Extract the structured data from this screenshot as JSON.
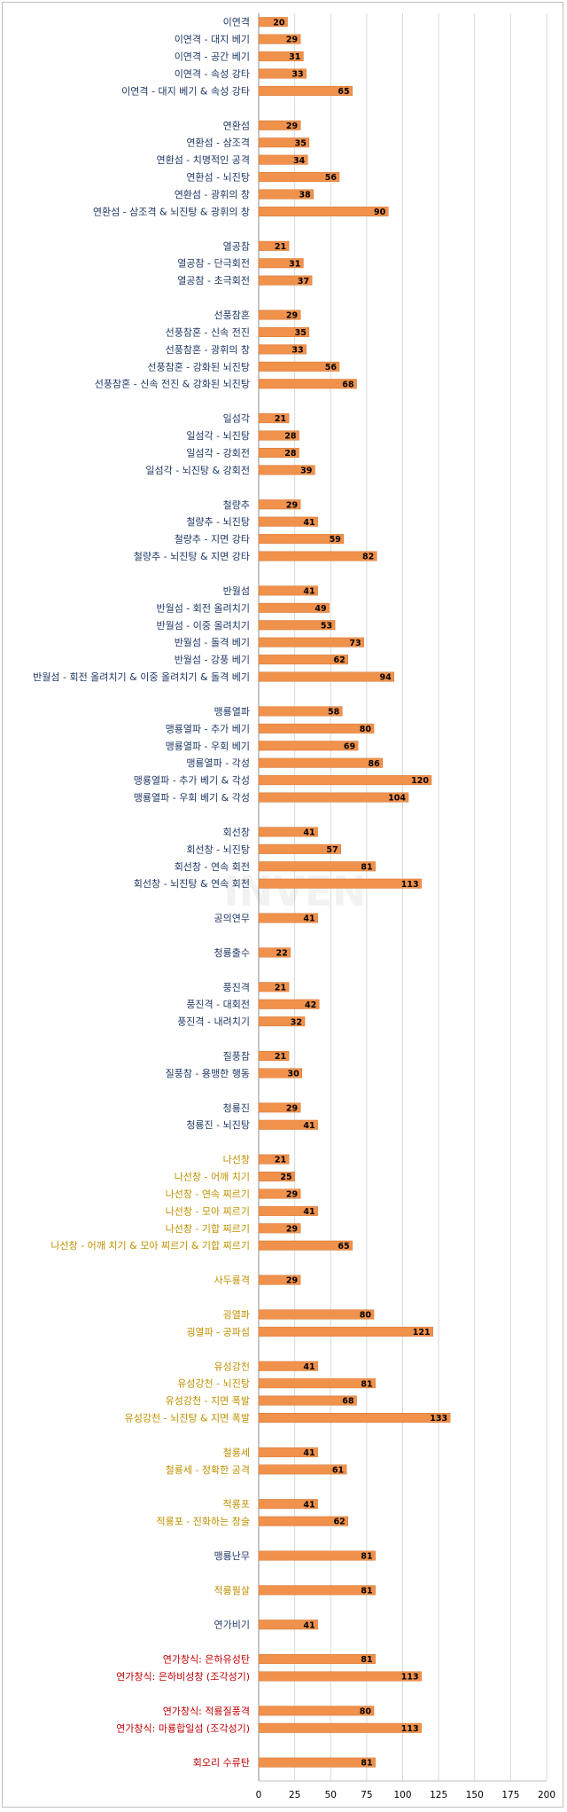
{
  "chart_data": {
    "type": "bar",
    "orientation": "horizontal",
    "grid": true,
    "xlim": [
      0,
      200
    ],
    "x_ticks": [
      "0",
      "25",
      "50",
      "75",
      "100",
      "125",
      "150",
      "175",
      "200"
    ],
    "colors": {
      "bar": "#F0914C",
      "bar_edge": "#d4752f",
      "navy": "#1F3864",
      "gold": "#BF9000",
      "red": "#C00000",
      "grid": "#d9d9d9",
      "value": "#000000"
    },
    "watermark": "INVEN",
    "categories": [
      {
        "label": "이연격",
        "value": 20,
        "color": "navy",
        "slot": 0
      },
      {
        "label": "이연격 - 대지 베기",
        "value": 29,
        "color": "navy",
        "slot": 1
      },
      {
        "label": "이연격 - 공간 베기",
        "value": 31,
        "color": "navy",
        "slot": 2
      },
      {
        "label": "이연격 - 속성 강타",
        "value": 33,
        "color": "navy",
        "slot": 3
      },
      {
        "label": "이연격 - 대지 베기 & 속성 강타",
        "value": 65,
        "color": "navy",
        "slot": 4
      },
      {
        "label": "연환섬",
        "value": 29,
        "color": "navy",
        "slot": 6
      },
      {
        "label": "연환섬 - 삼조격",
        "value": 35,
        "color": "navy",
        "slot": 7
      },
      {
        "label": "연환섬 - 치명적인 공격",
        "value": 34,
        "color": "navy",
        "slot": 8
      },
      {
        "label": "연환섬 - 뇌진탕",
        "value": 56,
        "color": "navy",
        "slot": 9
      },
      {
        "label": "연환섬 - 광휘의 창",
        "value": 38,
        "color": "navy",
        "slot": 10
      },
      {
        "label": "연환섬 - 삼조격 & 뇌진탕 & 광휘의 창",
        "value": 90,
        "color": "navy",
        "slot": 11
      },
      {
        "label": "열공참",
        "value": 21,
        "color": "navy",
        "slot": 13
      },
      {
        "label": "열공참 - 단극회전",
        "value": 31,
        "color": "navy",
        "slot": 14
      },
      {
        "label": "열공참 - 초극회전",
        "value": 37,
        "color": "navy",
        "slot": 15
      },
      {
        "label": "선풍참혼",
        "value": 29,
        "color": "navy",
        "slot": 17
      },
      {
        "label": "선풍참혼 - 신속 전진",
        "value": 35,
        "color": "navy",
        "slot": 18
      },
      {
        "label": "선풍참혼 - 광휘의 창",
        "value": 33,
        "color": "navy",
        "slot": 19
      },
      {
        "label": "선풍참혼 - 강화된 뇌진탕",
        "value": 56,
        "color": "navy",
        "slot": 20
      },
      {
        "label": "선풍참혼 - 신속 전진 & 강화된 뇌진탕",
        "value": 68,
        "color": "navy",
        "slot": 21
      },
      {
        "label": "일섬각",
        "value": 21,
        "color": "navy",
        "slot": 23
      },
      {
        "label": "일섬각 - 뇌진탕",
        "value": 28,
        "color": "navy",
        "slot": 24
      },
      {
        "label": "일섬각 - 강회전",
        "value": 28,
        "color": "navy",
        "slot": 25
      },
      {
        "label": "일섬각 - 뇌진탕 & 강회전",
        "value": 39,
        "color": "navy",
        "slot": 26
      },
      {
        "label": "철량추",
        "value": 29,
        "color": "navy",
        "slot": 28
      },
      {
        "label": "철량추 - 뇌진탕",
        "value": 41,
        "color": "navy",
        "slot": 29
      },
      {
        "label": "철량추 - 지면 강타",
        "value": 59,
        "color": "navy",
        "slot": 30
      },
      {
        "label": "철량추 - 뇌진탕 & 지면 강타",
        "value": 82,
        "color": "navy",
        "slot": 31
      },
      {
        "label": "반월섬",
        "value": 41,
        "color": "navy",
        "slot": 33
      },
      {
        "label": "반월섬 - 회전 올려치기",
        "value": 49,
        "color": "navy",
        "slot": 34
      },
      {
        "label": "반월섬 - 이중 올려치기",
        "value": 53,
        "color": "navy",
        "slot": 35
      },
      {
        "label": "반월섬 - 돌격 베기",
        "value": 73,
        "color": "navy",
        "slot": 36
      },
      {
        "label": "반월섬 - 강풍 베기",
        "value": 62,
        "color": "navy",
        "slot": 37
      },
      {
        "label": "반월섬 - 회전 올려치기 & 이중 올려치기 & 돌격 베기",
        "value": 94,
        "color": "navy",
        "slot": 38
      },
      {
        "label": "맹룡열파",
        "value": 58,
        "color": "navy",
        "slot": 40
      },
      {
        "label": "맹룡열파 - 추가 베기",
        "value": 80,
        "color": "navy",
        "slot": 41
      },
      {
        "label": "맹룡열파 - 우회 베기",
        "value": 69,
        "color": "navy",
        "slot": 42
      },
      {
        "label": "맹룡열파 - 각성",
        "value": 86,
        "color": "navy",
        "slot": 43
      },
      {
        "label": "맹룡열파 - 추가 베기 & 각성",
        "value": 120,
        "color": "navy",
        "slot": 44
      },
      {
        "label": "맹룡열파 - 우회 베기 & 각성",
        "value": 104,
        "color": "navy",
        "slot": 45
      },
      {
        "label": "회선창",
        "value": 41,
        "color": "navy",
        "slot": 47
      },
      {
        "label": "회선창 - 뇌진탕",
        "value": 57,
        "color": "navy",
        "slot": 48
      },
      {
        "label": "회선창 - 연속 회전",
        "value": 81,
        "color": "navy",
        "slot": 49
      },
      {
        "label": "회선창 - 뇌진탕 & 연속 회전",
        "value": 113,
        "color": "navy",
        "slot": 50
      },
      {
        "label": "공의연무",
        "value": 41,
        "color": "navy",
        "slot": 52
      },
      {
        "label": "청룡출수",
        "value": 22,
        "color": "navy",
        "slot": 54
      },
      {
        "label": "풍진격",
        "value": 21,
        "color": "navy",
        "slot": 56
      },
      {
        "label": "풍진격 - 대회전",
        "value": 42,
        "color": "navy",
        "slot": 57
      },
      {
        "label": "풍진격 - 내려치기",
        "value": 32,
        "color": "navy",
        "slot": 58
      },
      {
        "label": "질풍참",
        "value": 21,
        "color": "navy",
        "slot": 60
      },
      {
        "label": "질풍참 - 용맹한 행동",
        "value": 30,
        "color": "navy",
        "slot": 61
      },
      {
        "label": "청룡진",
        "value": 29,
        "color": "navy",
        "slot": 63
      },
      {
        "label": "청룡진 - 뇌진탕",
        "value": 41,
        "color": "navy",
        "slot": 64
      },
      {
        "label": "나선창",
        "value": 21,
        "color": "gold",
        "slot": 66
      },
      {
        "label": "나선창 - 어깨 치기",
        "value": 25,
        "color": "gold",
        "slot": 67
      },
      {
        "label": "나선창 - 연속 찌르기",
        "value": 29,
        "color": "gold",
        "slot": 68
      },
      {
        "label": "나선창 - 모아 찌르기",
        "value": 41,
        "color": "gold",
        "slot": 69
      },
      {
        "label": "나선창 - 기합 찌르기",
        "value": 29,
        "color": "gold",
        "slot": 70
      },
      {
        "label": "나선창 - 어깨 치기 & 모아 찌르기 & 기합 찌르기",
        "value": 65,
        "color": "gold",
        "slot": 71
      },
      {
        "label": "사두룡격",
        "value": 29,
        "color": "gold",
        "slot": 73
      },
      {
        "label": "굉열파",
        "value": 80,
        "color": "gold",
        "slot": 75
      },
      {
        "label": "굉열파 - 공파섬",
        "value": 121,
        "color": "gold",
        "slot": 76
      },
      {
        "label": "유성강천",
        "value": 41,
        "color": "gold",
        "slot": 78
      },
      {
        "label": "유성강천 - 뇌진탕",
        "value": 81,
        "color": "gold",
        "slot": 79
      },
      {
        "label": "유성강천 - 지면 폭발",
        "value": 68,
        "color": "gold",
        "slot": 80
      },
      {
        "label": "유성강천 - 뇌진탕 & 지면 폭발",
        "value": 133,
        "color": "gold",
        "slot": 81
      },
      {
        "label": "철룡세",
        "value": 41,
        "color": "gold",
        "slot": 83
      },
      {
        "label": "철룡세 - 정확한 공격",
        "value": 61,
        "color": "gold",
        "slot": 84
      },
      {
        "label": "적룡포",
        "value": 41,
        "color": "gold",
        "slot": 86
      },
      {
        "label": "적룡포 - 진화하는 창술",
        "value": 62,
        "color": "gold",
        "slot": 87
      },
      {
        "label": "맹룡난무",
        "value": 81,
        "color": "navy",
        "slot": 89
      },
      {
        "label": "적룡필살",
        "value": 81,
        "color": "gold",
        "slot": 91
      },
      {
        "label": "연가비기",
        "value": 41,
        "color": "navy",
        "slot": 93
      },
      {
        "label": "연가창식: 은하유성탄",
        "value": 81,
        "color": "red",
        "slot": 95
      },
      {
        "label": "연가창식: 은하비성창 (조각성기)",
        "value": 113,
        "color": "red",
        "slot": 96
      },
      {
        "label": "연가창식: 적룡질풍격",
        "value": 80,
        "color": "red",
        "slot": 98
      },
      {
        "label": "연가창식: 마룡합일섬 (조각성기)",
        "value": 113,
        "color": "red",
        "slot": 99
      },
      {
        "label": "회오리 수류탄",
        "value": 81,
        "color": "red",
        "slot": 101
      }
    ]
  }
}
